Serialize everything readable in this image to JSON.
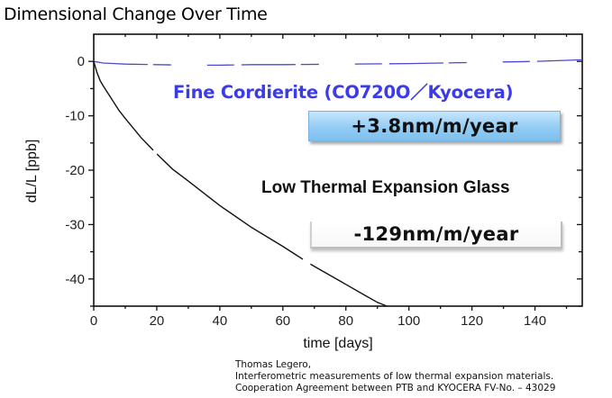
{
  "title": "Dimensional Change Over Time",
  "annotations": {
    "series1_label": "Fine Cordierite (CO720O／Kyocera)",
    "series1_rate": "+3.8nm/m/year",
    "series2_label": "Low Thermal Expansion Glass",
    "series2_rate": "-129nm/m/year"
  },
  "citation": {
    "line1": "Thomas Legero,",
    "line2": "Interferometric measurements of low thermal expansion materials.",
    "line3": "Cooperation Agreement between PTB and KYOCERA FV-No. – 43029"
  },
  "colors": {
    "series1": "#4a4ad0",
    "series2": "#111111",
    "series1_label": "#3b3bea",
    "badge_blue": "#8fcaf3"
  },
  "chart_data": {
    "type": "line",
    "title": "Dimensional Change Over Time",
    "xlabel": "time [days]",
    "ylabel": "dL/L [ppb]",
    "xlim": [
      0,
      155
    ],
    "ylim": [
      -45,
      5
    ],
    "xticks": [
      0,
      20,
      40,
      60,
      80,
      100,
      120,
      140
    ],
    "yticks": [
      0,
      -10,
      -20,
      -30,
      -40
    ],
    "grid": false,
    "legend": "inline annotations",
    "series": [
      {
        "name": "Fine Cordierite (CO720O／Kyocera)",
        "rate": "+3.8nm/m/year",
        "color": "#4a4ad0",
        "x": [
          0,
          3,
          10,
          20,
          30,
          40,
          50,
          60,
          80,
          100,
          110,
          120,
          130,
          140,
          155
        ],
        "y": [
          0,
          -0.3,
          -0.5,
          -0.6,
          -0.7,
          -0.7,
          -0.6,
          -0.6,
          -0.5,
          -0.4,
          -0.3,
          -0.2,
          -0.1,
          0.0,
          0.3
        ]
      },
      {
        "name": "Low Thermal Expansion Glass",
        "rate": "-129nm/m/year",
        "color": "#111111",
        "x": [
          0,
          1,
          2,
          3,
          5,
          8,
          10,
          15,
          20,
          25,
          30,
          40,
          50,
          60,
          64,
          68,
          70,
          80,
          86,
          90,
          93
        ],
        "y": [
          0,
          -2,
          -3.5,
          -4.5,
          -6.3,
          -9,
          -10.5,
          -14,
          -17,
          -19.8,
          -22,
          -26.5,
          -30.5,
          -34,
          -35.5,
          -37,
          -37.7,
          -41,
          -43,
          -44.3,
          -45
        ]
      }
    ]
  }
}
